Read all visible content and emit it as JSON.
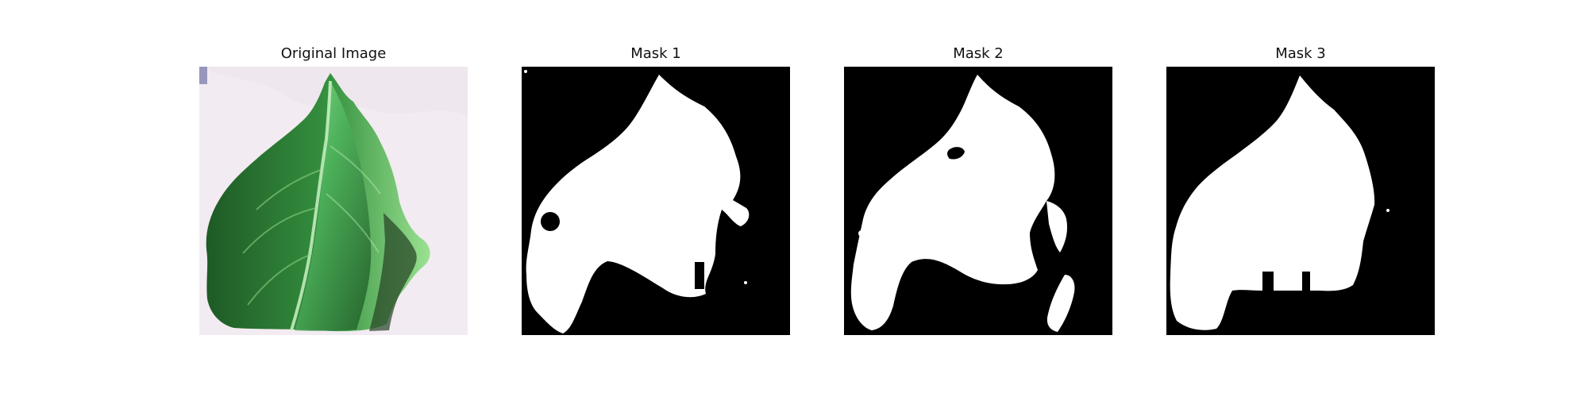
{
  "panels": [
    {
      "title": "Original Image"
    },
    {
      "title": "Mask 1"
    },
    {
      "title": "Mask 2"
    },
    {
      "title": "Mask 3"
    }
  ],
  "colors": {
    "background": "#f1e9f0",
    "leaf_dark": "#1f5a25",
    "leaf_mid": "#3f9c4c",
    "leaf_light": "#8fe28d",
    "mask_black": "#000000",
    "mask_white": "#ffffff"
  }
}
